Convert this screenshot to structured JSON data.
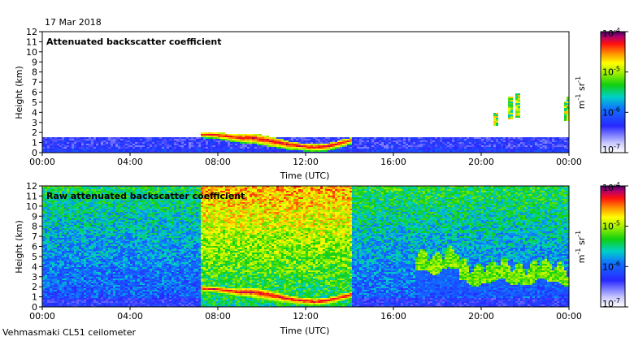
{
  "date_label": "17 Mar 2018",
  "footer_label": "Vehmasmaki CL51 ceilometer",
  "chart_data": [
    {
      "type": "heatmap",
      "title": "Attenuated backscatter coefficient",
      "xlabel": "Time (UTC)",
      "ylabel": "Height (km)",
      "x_ticks": [
        "00:00",
        "04:00",
        "08:00",
        "12:00",
        "16:00",
        "20:00",
        "00:00"
      ],
      "x_range_hours": [
        0,
        24
      ],
      "y_ticks": [
        "0",
        "1",
        "2",
        "3",
        "4",
        "5",
        "6",
        "7",
        "8",
        "9",
        "10",
        "11",
        "12"
      ],
      "y_range_km": [
        0,
        12
      ],
      "colorbar": {
        "unit_main": "m",
        "unit_exp1": "-1",
        "unit_mid": " sr",
        "unit_exp2": "-1",
        "scale": "log",
        "tick_base": "10",
        "ticks": [
          "-4",
          "-5",
          "-6",
          "-7"
        ],
        "range": [
          1e-07,
          0.0001
        ]
      },
      "features": {
        "boundary_layer_top_km": 1.6,
        "cloud_layer": {
          "start_hour": 7.2,
          "end_hour": 14.1,
          "top_km": [
            2.1,
            2.1,
            2.0,
            1.9,
            2.0,
            1.8,
            1.5,
            1.2,
            1.0,
            0.9,
            1.0,
            1.3,
            1.6
          ],
          "bottom_km": [
            1.7,
            1.6,
            1.4,
            1.2,
            1.1,
            0.9,
            0.7,
            0.5,
            0.4,
            0.3,
            0.4,
            0.7,
            1.1
          ]
        },
        "elevated_streaks": [
          {
            "hour": 20.6,
            "bottom_km": 2.7,
            "top_km": 4.0
          },
          {
            "hour": 21.3,
            "bottom_km": 3.4,
            "top_km": 5.6
          },
          {
            "hour": 21.6,
            "bottom_km": 3.6,
            "top_km": 6.0
          },
          {
            "hour": 23.8,
            "bottom_km": 3.2,
            "top_km": 5.2
          },
          {
            "hour": 23.95,
            "bottom_km": 3.4,
            "top_km": 5.6
          }
        ]
      }
    },
    {
      "type": "heatmap",
      "title": "Raw attenuated backscatter coefficient",
      "xlabel": "Time (UTC)",
      "ylabel": "Height (km)",
      "x_ticks": [
        "00:00",
        "04:00",
        "08:00",
        "12:00",
        "16:00",
        "20:00",
        "00:00"
      ],
      "x_range_hours": [
        0,
        24
      ],
      "y_ticks": [
        "0",
        "1",
        "2",
        "3",
        "4",
        "5",
        "6",
        "7",
        "8",
        "9",
        "10",
        "11",
        "12"
      ],
      "y_range_km": [
        0,
        12
      ],
      "colorbar": {
        "unit_main": "m",
        "unit_exp1": "-1",
        "unit_mid": " sr",
        "unit_exp2": "-1",
        "scale": "log",
        "tick_base": "10",
        "ticks": [
          "-4",
          "-5",
          "-6",
          "-7"
        ],
        "range": [
          1e-07,
          0.0001
        ]
      },
      "features": {
        "noise_high_period_hours": [
          7.2,
          14.1
        ],
        "cloud_layer_same_as_above": true,
        "evening_aerosol_layer_hours": [
          17.0,
          24.0
        ],
        "evening_aerosol_layer_km": [
          2.5,
          5.5
        ]
      }
    }
  ]
}
